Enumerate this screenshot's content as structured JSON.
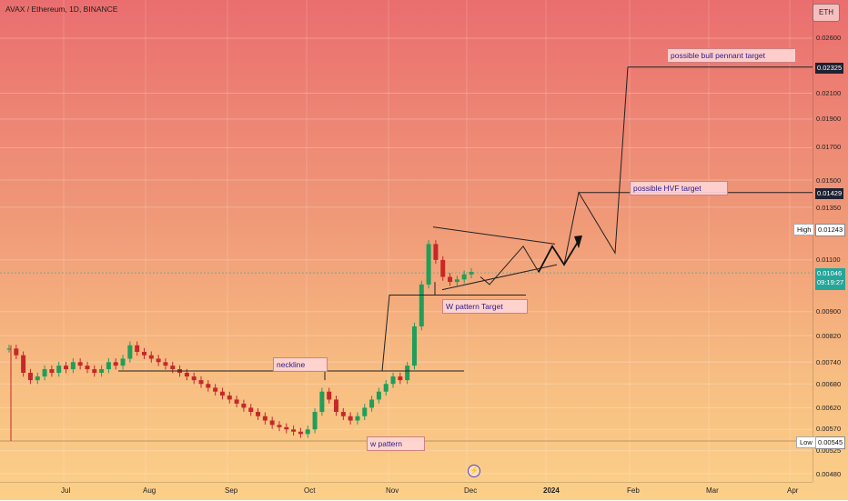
{
  "header": {
    "symbol": "AVAX / Ethereum, 1D, BINANCE",
    "currency_button": "ETH"
  },
  "chart_data": {
    "type": "candlestick",
    "title": "AVAX / Ethereum, 1D, BINANCE",
    "y_scale": "log",
    "ylim": [
      0.0047,
      0.0275
    ],
    "y_ticks": [
      "0.02600",
      "0.02100",
      "0.01900",
      "0.01700",
      "0.01500",
      "0.01350",
      "0.01100",
      "0.00900",
      "0.00820",
      "0.00740",
      "0.00680",
      "0.00620",
      "0.00570",
      "0.00525",
      "0.00480"
    ],
    "x_ticks": [
      "Jul",
      "Aug",
      "Sep",
      "Oct",
      "Nov",
      "Dec",
      "2024",
      "Feb",
      "Mar",
      "Apr"
    ],
    "x_ticks_bold": [
      "2024"
    ],
    "price_tags": [
      {
        "label": "0.02325",
        "style": "dark"
      },
      {
        "label": "0.01429",
        "style": "dark"
      },
      {
        "label": "0.01243",
        "style": "light",
        "side_label": "High"
      },
      {
        "label": "0.01046",
        "style": "green",
        "sub": "09:19:27"
      },
      {
        "label": "0.00545",
        "style": "light",
        "side_label": "Low"
      }
    ],
    "annotations": [
      "possible bull pennant target",
      "possible HVF target",
      "W pattern Target",
      "neckline",
      "w pattern"
    ],
    "candles_close_path": [
      0.0078,
      0.0076,
      0.0071,
      0.0069,
      0.007,
      0.0072,
      0.0071,
      0.0073,
      0.0072,
      0.0074,
      0.0073,
      0.0072,
      0.0071,
      0.0072,
      0.0074,
      0.0073,
      0.0075,
      0.0079,
      0.0077,
      0.0076,
      0.0075,
      0.0074,
      0.0073,
      0.0072,
      0.0071,
      0.007,
      0.0069,
      0.0068,
      0.0067,
      0.0066,
      0.0065,
      0.0064,
      0.0063,
      0.0062,
      0.0061,
      0.006,
      0.0059,
      0.0058,
      0.00575,
      0.0057,
      0.00565,
      0.0056,
      0.0057,
      0.0061,
      0.0066,
      0.0064,
      0.0061,
      0.006,
      0.0059,
      0.006,
      0.0062,
      0.0064,
      0.0066,
      0.0068,
      0.007,
      0.0069,
      0.0073,
      0.0085,
      0.01,
      0.0117,
      0.011,
      0.0103,
      0.0101,
      0.0102,
      0.0104,
      0.0105
    ]
  }
}
